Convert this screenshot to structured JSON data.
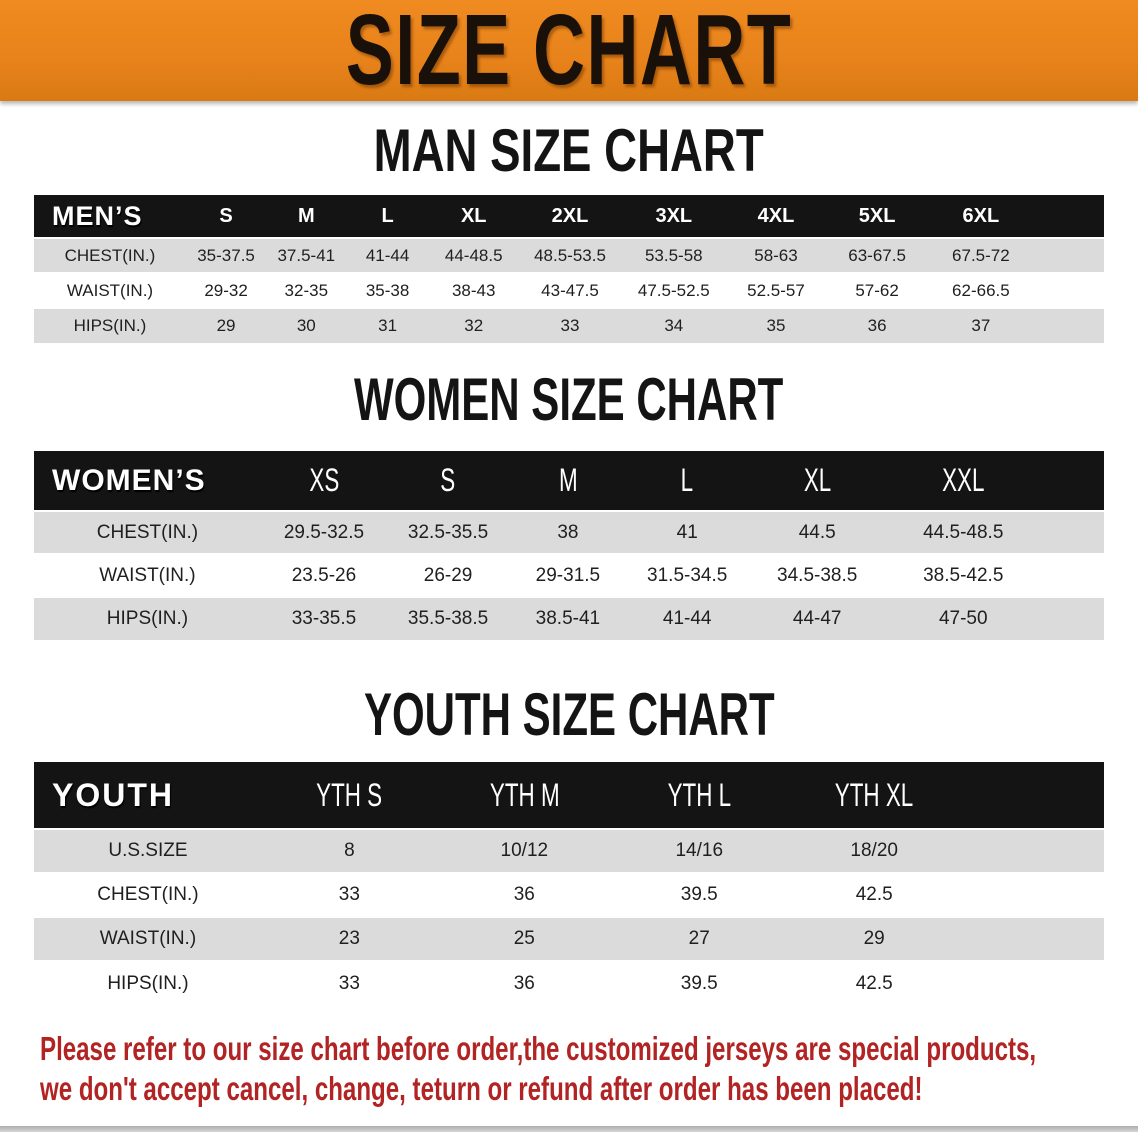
{
  "banner": {
    "title": "SIZE CHART"
  },
  "colors": {
    "banner_orange": "#E8821B",
    "banner_orange_light": "#EF8B20",
    "header_bar_black": "#141414",
    "row_gray": "#DBDBDB",
    "disclaimer_red": "#B22323"
  },
  "sections": [
    {
      "heading": "MAN SIZE CHART",
      "table": {
        "label_header": "MEN’S",
        "col_headers": [
          "S",
          "M",
          "L",
          "XL",
          "2XL",
          "3XL",
          "4XL",
          "5XL",
          "6XL"
        ],
        "rows": [
          {
            "label": "CHEST(IN.)",
            "values": [
              "35-37.5",
              "37.5-41",
              "41-44",
              "44-48.5",
              "48.5-53.5",
              "53.5-58",
              "58-63",
              "63-67.5",
              "67.5-72"
            ]
          },
          {
            "label": "WAIST(IN.)",
            "values": [
              "29-32",
              "32-35",
              "35-38",
              "38-43",
              "43-47.5",
              "47.5-52.5",
              "52.5-57",
              "57-62",
              "62-66.5"
            ]
          },
          {
            "label": "HIPS(IN.)",
            "values": [
              "29",
              "30",
              "31",
              "32",
              "33",
              "34",
              "35",
              "36",
              "37"
            ]
          }
        ]
      }
    },
    {
      "heading": "WOMEN SIZE CHART",
      "table": {
        "label_header": "WOMEN’S",
        "col_headers": [
          "XS",
          "S",
          "M",
          "L",
          "XL",
          "XXL"
        ],
        "rows": [
          {
            "label": "CHEST(IN.)",
            "values": [
              "29.5-32.5",
              "32.5-35.5",
              "38",
              "41",
              "44.5",
              "44.5-48.5"
            ]
          },
          {
            "label": "WAIST(IN.)",
            "values": [
              "23.5-26",
              "26-29",
              "29-31.5",
              "31.5-34.5",
              "34.5-38.5",
              "38.5-42.5"
            ]
          },
          {
            "label": "HIPS(IN.)",
            "values": [
              "33-35.5",
              "35.5-38.5",
              "38.5-41",
              "41-44",
              "44-47",
              "47-50"
            ]
          }
        ]
      }
    },
    {
      "heading": "YOUTH SIZE CHART",
      "table": {
        "label_header": "YOUTH",
        "col_headers": [
          "YTH S",
          "YTH M",
          "YTH L",
          "YTH XL"
        ],
        "rows": [
          {
            "label": "U.S.SIZE",
            "values": [
              "8",
              "10/12",
              "14/16",
              "18/20"
            ]
          },
          {
            "label": "CHEST(IN.)",
            "values": [
              "33",
              "36",
              "39.5",
              "42.5"
            ]
          },
          {
            "label": "WAIST(IN.)",
            "values": [
              "23",
              "25",
              "27",
              "29"
            ]
          },
          {
            "label": "HIPS(IN.)",
            "values": [
              "33",
              "36",
              "39.5",
              "42.5"
            ]
          }
        ]
      }
    }
  ],
  "footer": {
    "lines": [
      "Please refer to our size chart before order,the customized jerseys are special products,",
      "we don't accept cancel, change, teturn or refund after order has been placed!"
    ]
  }
}
